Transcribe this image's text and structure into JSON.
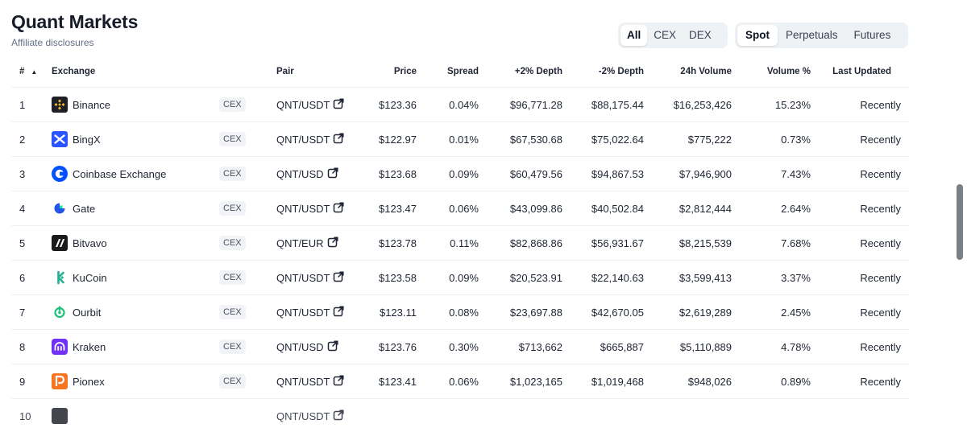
{
  "header": {
    "title": "Quant Markets",
    "subtitle": "Affiliate disclosures"
  },
  "filters": {
    "venue": [
      "All",
      "CEX",
      "DEX"
    ],
    "venue_active": "All",
    "market": [
      "Spot",
      "Perpetuals",
      "Futures"
    ],
    "market_active": "Spot"
  },
  "table": {
    "columns": {
      "rank": "#",
      "exchange": "Exchange",
      "pair": "Pair",
      "price": "Price",
      "spread": "Spread",
      "depth_plus": "+2% Depth",
      "depth_minus": "-2% Depth",
      "volume": "24h Volume",
      "volume_pct": "Volume %",
      "updated": "Last Updated"
    },
    "rows": [
      {
        "rank": "1",
        "exchange": "Binance",
        "logo": "binance-logo",
        "type": "CEX",
        "pair": "QNT/USDT",
        "price": "$123.36",
        "spread": "0.04%",
        "depth_plus": "$96,771.28",
        "depth_minus": "$88,175.44",
        "volume": "$16,253,426",
        "volume_pct": "15.23%",
        "updated": "Recently"
      },
      {
        "rank": "2",
        "exchange": "BingX",
        "logo": "bingx-logo",
        "type": "CEX",
        "pair": "QNT/USDT",
        "price": "$122.97",
        "spread": "0.01%",
        "depth_plus": "$67,530.68",
        "depth_minus": "$75,022.64",
        "volume": "$775,222",
        "volume_pct": "0.73%",
        "updated": "Recently"
      },
      {
        "rank": "3",
        "exchange": "Coinbase Exchange",
        "logo": "coinbase-logo",
        "type": "CEX",
        "pair": "QNT/USD",
        "price": "$123.68",
        "spread": "0.09%",
        "depth_plus": "$60,479.56",
        "depth_minus": "$94,867.53",
        "volume": "$7,946,900",
        "volume_pct": "7.43%",
        "updated": "Recently"
      },
      {
        "rank": "4",
        "exchange": "Gate",
        "logo": "gate-logo",
        "type": "CEX",
        "pair": "QNT/USDT",
        "price": "$123.47",
        "spread": "0.06%",
        "depth_plus": "$43,099.86",
        "depth_minus": "$40,502.84",
        "volume": "$2,812,444",
        "volume_pct": "2.64%",
        "updated": "Recently"
      },
      {
        "rank": "5",
        "exchange": "Bitvavo",
        "logo": "bitvavo-logo",
        "type": "CEX",
        "pair": "QNT/EUR",
        "price": "$123.78",
        "spread": "0.11%",
        "depth_plus": "$82,868.86",
        "depth_minus": "$56,931.67",
        "volume": "$8,215,539",
        "volume_pct": "7.68%",
        "updated": "Recently"
      },
      {
        "rank": "6",
        "exchange": "KuCoin",
        "logo": "kucoin-logo",
        "type": "CEX",
        "pair": "QNT/USDT",
        "price": "$123.58",
        "spread": "0.09%",
        "depth_plus": "$20,523.91",
        "depth_minus": "$22,140.63",
        "volume": "$3,599,413",
        "volume_pct": "3.37%",
        "updated": "Recently"
      },
      {
        "rank": "7",
        "exchange": "Ourbit",
        "logo": "ourbit-logo",
        "type": "CEX",
        "pair": "QNT/USDT",
        "price": "$123.11",
        "spread": "0.08%",
        "depth_plus": "$23,697.88",
        "depth_minus": "$42,670.05",
        "volume": "$2,619,289",
        "volume_pct": "2.45%",
        "updated": "Recently"
      },
      {
        "rank": "8",
        "exchange": "Kraken",
        "logo": "kraken-logo",
        "type": "CEX",
        "pair": "QNT/USD",
        "price": "$123.76",
        "spread": "0.30%",
        "depth_plus": "$713,662",
        "depth_minus": "$665,887",
        "volume": "$5,110,889",
        "volume_pct": "4.78%",
        "updated": "Recently"
      },
      {
        "rank": "9",
        "exchange": "Pionex",
        "logo": "pionex-logo",
        "type": "CEX",
        "pair": "QNT/USDT",
        "price": "$123.41",
        "spread": "0.06%",
        "depth_plus": "$1,023,165",
        "depth_minus": "$1,019,468",
        "volume": "$948,026",
        "volume_pct": "0.89%",
        "updated": "Recently"
      }
    ],
    "partial_row": {
      "rank": "10",
      "logo": "dark-square-logo",
      "pair": "QNT/USDT"
    }
  },
  "colors": {
    "binance": "#F3BA2F",
    "bingx": "#2A54FF",
    "coinbase": "#0052FF",
    "gate": "#2354E6",
    "bitvavo": "#1A1A1A",
    "kucoin": "#23AF91",
    "ourbit": "#1FC07A",
    "kraken": "#7132F5",
    "pionex": "#F77521"
  }
}
